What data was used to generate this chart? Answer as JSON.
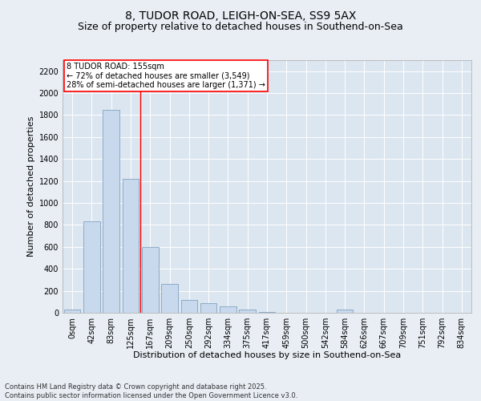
{
  "title1": "8, TUDOR ROAD, LEIGH-ON-SEA, SS9 5AX",
  "title2": "Size of property relative to detached houses in Southend-on-Sea",
  "xlabel": "Distribution of detached houses by size in Southend-on-Sea",
  "ylabel": "Number of detached properties",
  "categories": [
    "0sqm",
    "42sqm",
    "83sqm",
    "125sqm",
    "167sqm",
    "209sqm",
    "250sqm",
    "292sqm",
    "334sqm",
    "375sqm",
    "417sqm",
    "459sqm",
    "500sqm",
    "542sqm",
    "584sqm",
    "626sqm",
    "667sqm",
    "709sqm",
    "751sqm",
    "792sqm",
    "834sqm"
  ],
  "values": [
    28,
    830,
    1850,
    1220,
    600,
    265,
    115,
    85,
    60,
    28,
    10,
    0,
    0,
    0,
    28,
    0,
    0,
    0,
    0,
    0,
    0
  ],
  "bar_color": "#c8d9ed",
  "bar_edge_color": "#7096b8",
  "vline_x": 3.5,
  "vline_color": "red",
  "annotation_text": "8 TUDOR ROAD: 155sqm\n← 72% of detached houses are smaller (3,549)\n28% of semi-detached houses are larger (1,371) →",
  "annotation_box_color": "red",
  "annotation_fill": "white",
  "background_color": "#e8eef4",
  "plot_bg_color": "#dce6f0",
  "footer": "Contains HM Land Registry data © Crown copyright and database right 2025.\nContains public sector information licensed under the Open Government Licence v3.0.",
  "ylim": [
    0,
    2300
  ],
  "yticks": [
    0,
    200,
    400,
    600,
    800,
    1000,
    1200,
    1400,
    1600,
    1800,
    2000,
    2200
  ],
  "title1_fontsize": 10,
  "title2_fontsize": 9,
  "xlabel_fontsize": 8,
  "ylabel_fontsize": 8,
  "tick_fontsize": 7,
  "footer_fontsize": 6,
  "annot_fontsize": 7
}
